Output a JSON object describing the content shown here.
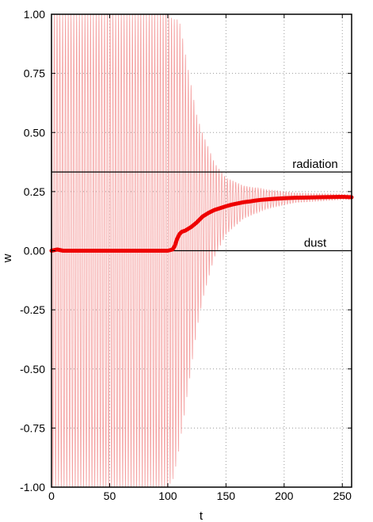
{
  "chart_data": {
    "type": "line",
    "title": "",
    "xlabel": "t",
    "ylabel": "w",
    "xlim": [
      0,
      258
    ],
    "ylim": [
      -1.0,
      1.0
    ],
    "grid": true,
    "xticks": [
      0,
      50,
      100,
      150,
      200,
      250
    ],
    "xtick_labels": [
      "0",
      "50",
      "100",
      "150",
      "200",
      "250"
    ],
    "yticks": [
      1.0,
      0.75,
      0.5,
      0.25,
      0.0,
      -0.25,
      -0.5,
      -0.75,
      -1.0
    ],
    "ytick_labels": [
      "1.00",
      "0.75",
      "0.50",
      "0.25",
      "0.00",
      "-0.25",
      "-0.50",
      "-0.75",
      "-1.00"
    ],
    "reference_lines": [
      {
        "label": "radiation",
        "y": 0.333
      },
      {
        "label": "dust",
        "y": 0.0
      }
    ],
    "oscillation": {
      "color": "#f4a0a0",
      "period": 2.4,
      "envelope": [
        [
          0,
          1.0
        ],
        [
          100,
          1.0
        ],
        [
          105,
          0.97
        ],
        [
          110,
          0.9
        ],
        [
          115,
          0.75
        ],
        [
          120,
          0.6
        ],
        [
          125,
          0.45
        ],
        [
          130,
          0.35
        ],
        [
          140,
          0.2
        ],
        [
          150,
          0.12
        ],
        [
          165,
          0.07
        ],
        [
          185,
          0.04
        ],
        [
          210,
          0.02
        ],
        [
          258,
          0.01
        ]
      ]
    },
    "series": [
      {
        "color": "#ee0000",
        "x": [
          0,
          5,
          10,
          50,
          100,
          104,
          106,
          108,
          110,
          112,
          115,
          120,
          125,
          130,
          135,
          140,
          145,
          150,
          155,
          160,
          165,
          170,
          175,
          180,
          185,
          190,
          200,
          210,
          220,
          230,
          240,
          250,
          258
        ],
        "y": [
          0.0,
          0.005,
          0.0,
          0.0,
          0.0,
          0.005,
          0.02,
          0.05,
          0.07,
          0.08,
          0.085,
          0.1,
          0.12,
          0.145,
          0.16,
          0.172,
          0.18,
          0.188,
          0.195,
          0.2,
          0.205,
          0.208,
          0.212,
          0.215,
          0.217,
          0.219,
          0.222,
          0.224,
          0.225,
          0.226,
          0.227,
          0.228,
          0.226
        ]
      }
    ]
  }
}
